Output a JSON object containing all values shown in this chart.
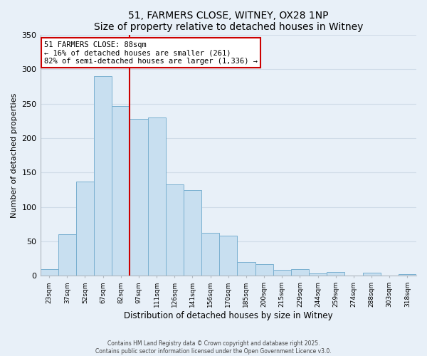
{
  "title": "51, FARMERS CLOSE, WITNEY, OX28 1NP",
  "subtitle": "Size of property relative to detached houses in Witney",
  "xlabel": "Distribution of detached houses by size in Witney",
  "ylabel": "Number of detached properties",
  "bar_color": "#c8dff0",
  "bar_edge_color": "#7ab0d0",
  "categories": [
    "23sqm",
    "37sqm",
    "52sqm",
    "67sqm",
    "82sqm",
    "97sqm",
    "111sqm",
    "126sqm",
    "141sqm",
    "156sqm",
    "170sqm",
    "185sqm",
    "200sqm",
    "215sqm",
    "229sqm",
    "244sqm",
    "259sqm",
    "274sqm",
    "288sqm",
    "303sqm",
    "318sqm"
  ],
  "values": [
    10,
    60,
    137,
    290,
    247,
    228,
    230,
    133,
    125,
    63,
    58,
    20,
    17,
    9,
    10,
    4,
    6,
    0,
    5,
    0,
    3
  ],
  "ylim": [
    0,
    350
  ],
  "yticks": [
    0,
    50,
    100,
    150,
    200,
    250,
    300,
    350
  ],
  "annotation_title": "51 FARMERS CLOSE: 88sqm",
  "annotation_line1": "← 16% of detached houses are smaller (261)",
  "annotation_line2": "82% of semi-detached houses are larger (1,336) →",
  "vline_color": "#cc0000",
  "annotation_box_color": "#ffffff",
  "annotation_box_edge": "#cc0000",
  "footer_line1": "Contains HM Land Registry data © Crown copyright and database right 2025.",
  "footer_line2": "Contains public sector information licensed under the Open Government Licence v3.0.",
  "bg_color": "#e8f0f8",
  "grid_color": "#d0dce8",
  "title_fontsize": 10,
  "subtitle_fontsize": 9
}
